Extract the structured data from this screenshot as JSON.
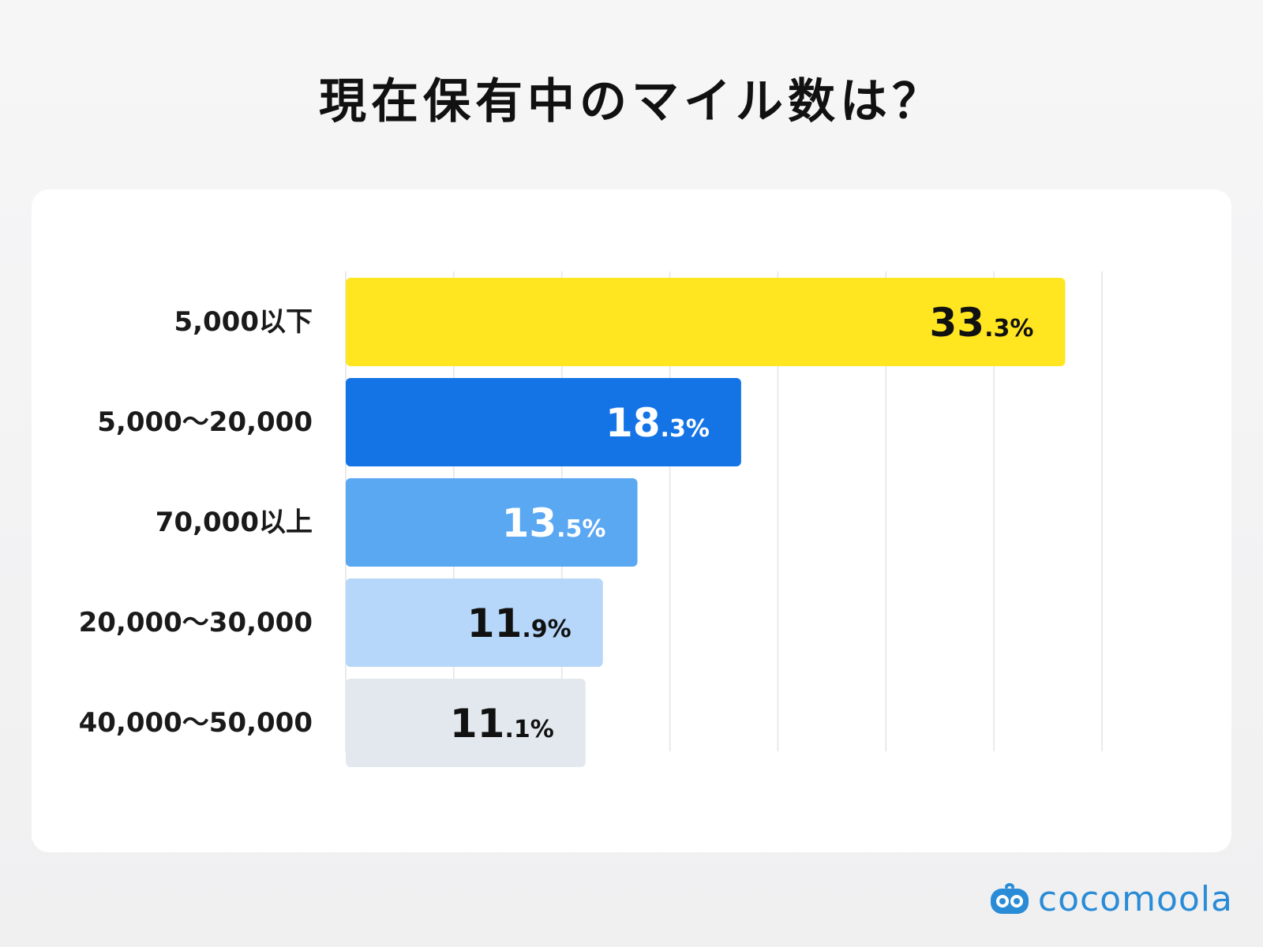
{
  "chart_data": {
    "type": "bar",
    "orientation": "horizontal",
    "title": "現在保有中のマイル数は？",
    "categories": [
      "5,000以下",
      "5,000〜20,000",
      "70,000以上",
      "20,000〜30,000",
      "40,000〜50,000"
    ],
    "values": [
      33.3,
      18.3,
      13.5,
      11.9,
      11.1
    ],
    "value_labels": [
      {
        "int": "33",
        "dec": ".3%"
      },
      {
        "int": "18",
        "dec": ".3%"
      },
      {
        "int": "13",
        "dec": ".5%"
      },
      {
        "int": "11",
        "dec": ".9%"
      },
      {
        "int": "11",
        "dec": ".1%"
      }
    ],
    "bar_colors": [
      "#ffe620",
      "#1474e6",
      "#5aa7f2",
      "#b6d7f9",
      "#e3e8ef"
    ],
    "label_colors": [
      "#111111",
      "#ffffff",
      "#ffffff",
      "#111111",
      "#111111"
    ],
    "xlim": [
      0,
      35
    ],
    "grid": true,
    "legend": "none"
  },
  "brand": {
    "name": "cocomoola",
    "color": "#2a8cd6"
  }
}
